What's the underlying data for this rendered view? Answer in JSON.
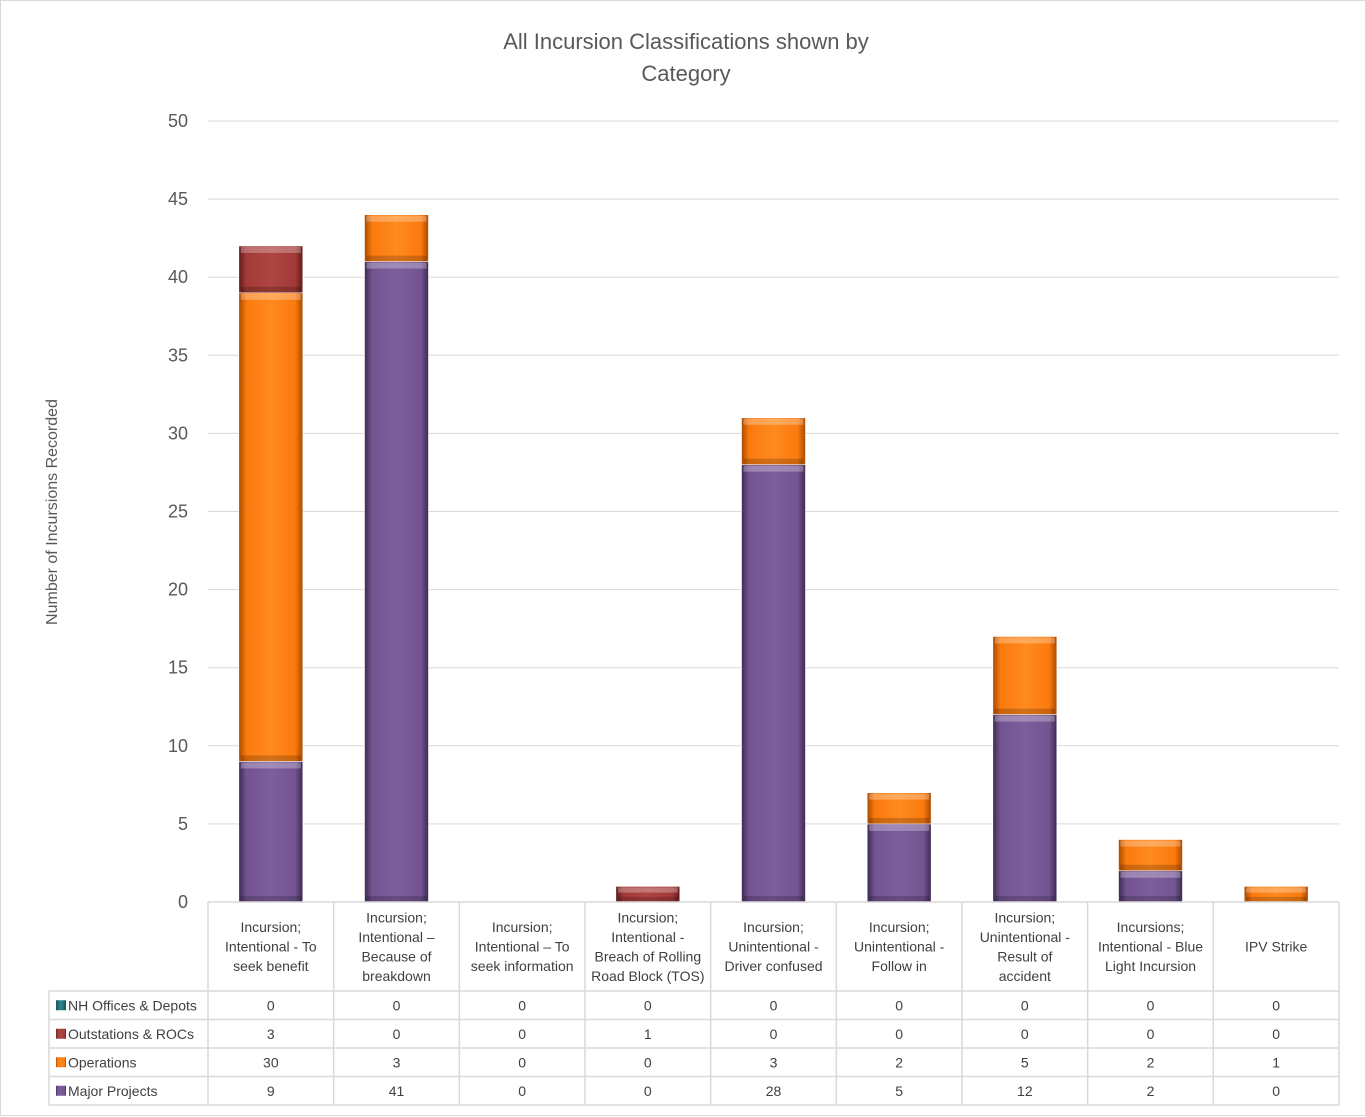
{
  "colors": {
    "nh_offices": "#2e8b94",
    "outstations": "#a33a37",
    "operations": "#fb7a0e",
    "major_projects": "#735491",
    "grid": "#d9d9d9",
    "text": "#595959"
  },
  "chart_data": {
    "type": "bar",
    "stacked": true,
    "title": "All Incursion Classifications shown by Category",
    "title_lines": [
      "All Incursion Classifications shown by",
      "Category"
    ],
    "xlabel": "",
    "ylabel": "Number of Incursions Recorded",
    "ylim": [
      0,
      50
    ],
    "yticks": [
      0,
      5,
      10,
      15,
      20,
      25,
      30,
      35,
      40,
      45,
      50
    ],
    "grid": true,
    "legend": "data-table",
    "categories": [
      "Incursion; Intentional - To seek benefit",
      "Incursion; Intentional – Because of breakdown",
      "Incursion; Intentional – To seek information",
      "Incursion; Intentional - Breach of Rolling Road Block (TOS)",
      "Incursion; Unintentional - Driver confused",
      "Incursion; Unintentional - Follow in",
      "Incursion; Unintentional - Result of accident",
      "Incursions; Intentional - Blue Light Incursion",
      "IPV Strike"
    ],
    "category_lines": [
      [
        "Incursion;",
        "Intentional - To",
        "seek benefit"
      ],
      [
        "Incursion;",
        "Intentional –",
        "Because of",
        "breakdown"
      ],
      [
        "Incursion;",
        "Intentional – To",
        "seek information"
      ],
      [
        "Incursion;",
        "Intentional -",
        "Breach of Rolling",
        "Road Block (TOS)"
      ],
      [
        "Incursion;",
        "Unintentional -",
        "Driver confused"
      ],
      [
        "Incursion;",
        "Unintentional -",
        "Follow in"
      ],
      [
        "Incursion;",
        "Unintentional -",
        "Result of",
        "accident"
      ],
      [
        "Incursions;",
        "Intentional - Blue",
        "Light Incursion"
      ],
      [
        "IPV Strike"
      ]
    ],
    "series": [
      {
        "name": "NH Offices & Depots",
        "color_key": "nh_offices",
        "values": [
          0,
          0,
          0,
          0,
          0,
          0,
          0,
          0,
          0
        ]
      },
      {
        "name": "Outstations & ROCs",
        "color_key": "outstations",
        "values": [
          3,
          0,
          0,
          1,
          0,
          0,
          0,
          0,
          0
        ]
      },
      {
        "name": "Operations",
        "color_key": "operations",
        "values": [
          30,
          3,
          0,
          0,
          3,
          2,
          5,
          2,
          1
        ]
      },
      {
        "name": "Major Projects",
        "color_key": "major_projects",
        "values": [
          9,
          41,
          0,
          0,
          28,
          5,
          12,
          2,
          0
        ]
      }
    ]
  }
}
